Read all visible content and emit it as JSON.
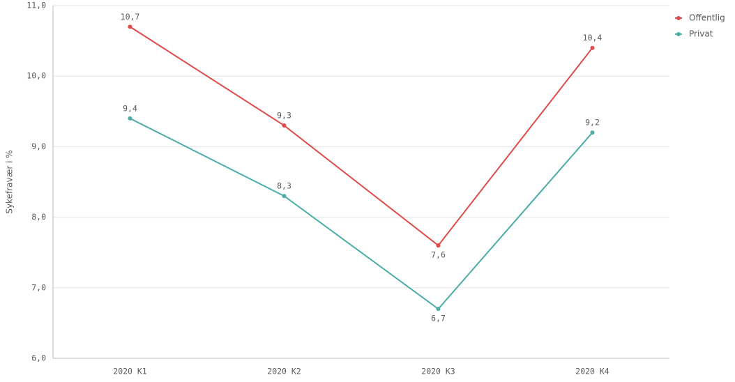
{
  "chart_data": {
    "type": "line",
    "y_label": "Sykefravær i %",
    "categories": [
      "2020 K1",
      "2020 K2",
      "2020 K3",
      "2020 K4"
    ],
    "series": [
      {
        "name": "Offentlig",
        "color": "#e04a4a",
        "values": [
          10.7,
          9.3,
          7.6,
          10.4
        ],
        "value_labels": [
          "10,7",
          "9,3",
          "7,6",
          "10,4"
        ]
      },
      {
        "name": "Privat",
        "color": "#4aada6",
        "values": [
          9.4,
          8.3,
          6.7,
          9.2
        ],
        "value_labels": [
          "9,4",
          "8,3",
          "6,7",
          "9,2"
        ]
      }
    ],
    "ylim": [
      6,
      11
    ],
    "yticks": [
      {
        "value": 6,
        "label": "6,0"
      },
      {
        "value": 7,
        "label": "7,0"
      },
      {
        "value": 8,
        "label": "8,0"
      },
      {
        "value": 9,
        "label": "9,0"
      },
      {
        "value": 10,
        "label": "10,0"
      },
      {
        "value": 11,
        "label": "11,0"
      }
    ],
    "grid": true,
    "legend": "top-right"
  }
}
